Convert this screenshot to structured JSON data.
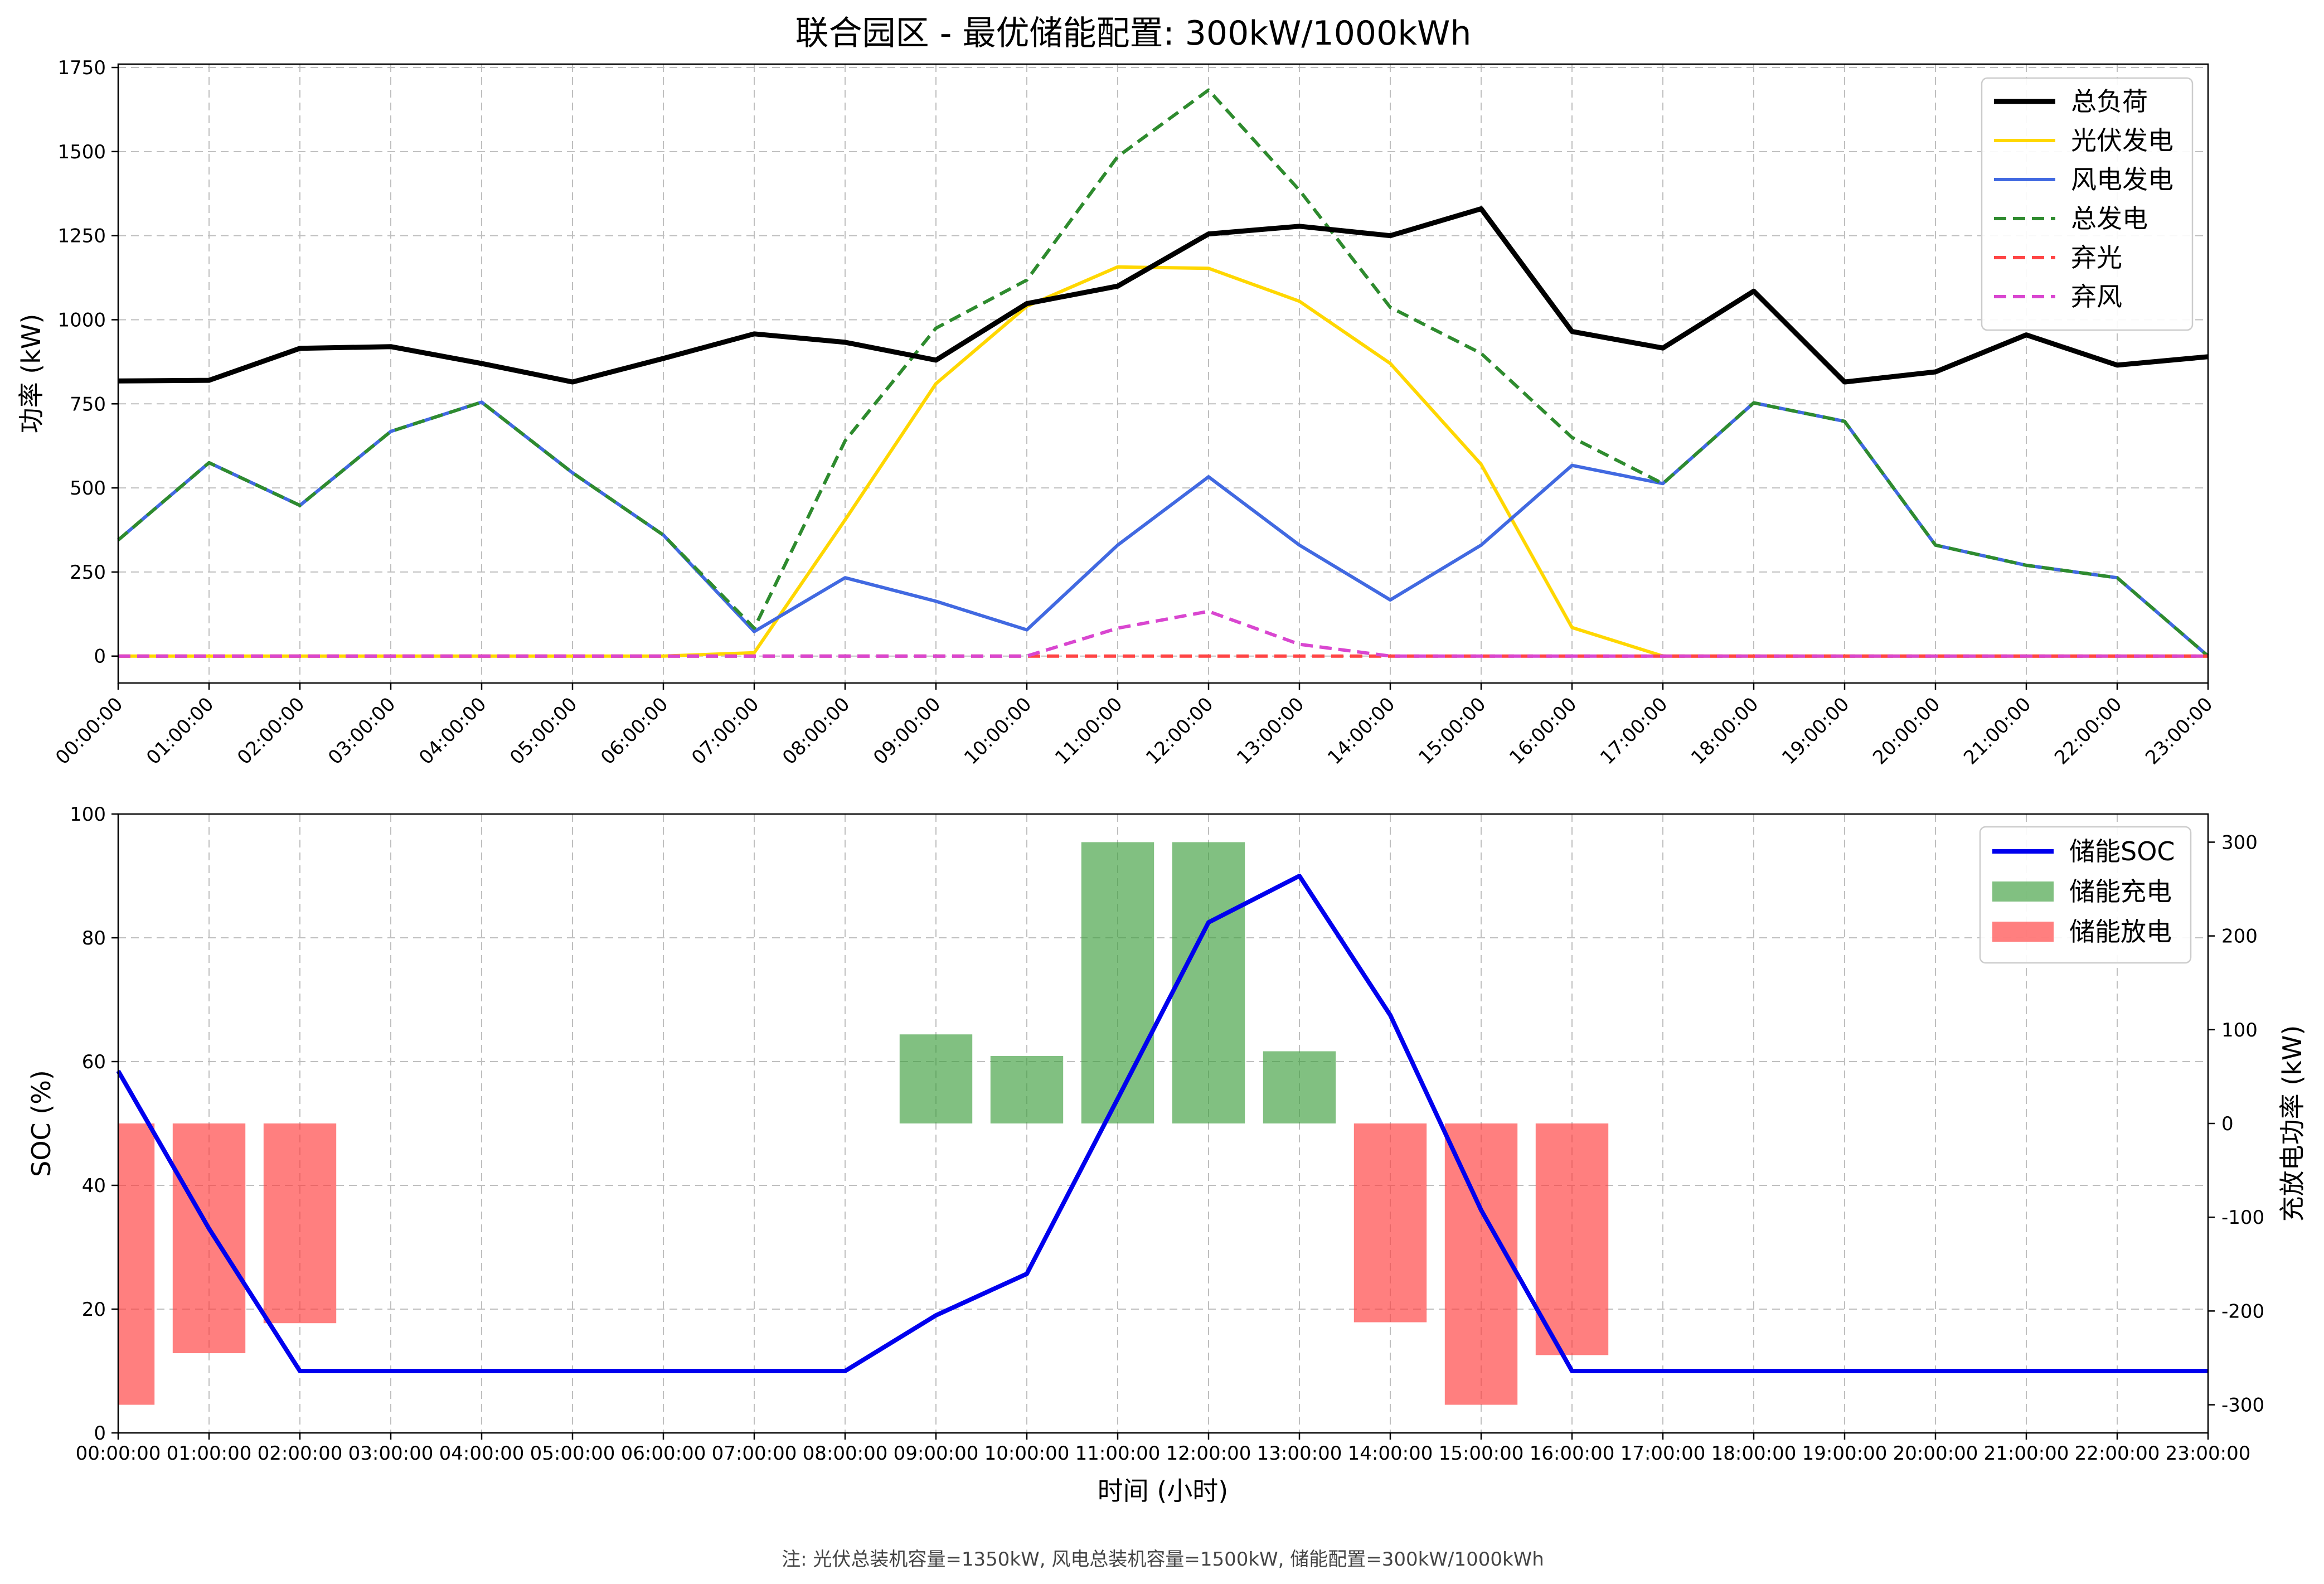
{
  "title": "联合园区 - 最优储能配置: 300kW/1000kWh",
  "note": "注: 光伏总装机容量=1350kW, 风电总装机容量=1500kW, 储能配置=300kW/1000kWh",
  "colors": {
    "load": "#000000",
    "pv": "#FFD700",
    "wind": "#4169E1",
    "total_gen": "#2E8B2E",
    "pv_curtail": "#FF4444",
    "wind_curtail": "#D946D0",
    "soc": "#0000EE",
    "charge": "#3D9E3D",
    "discharge": "#FF3B3B"
  },
  "chart_data": [
    {
      "type": "line",
      "name": "power",
      "ylabel": "功率 (kW)",
      "ylim": [
        -80,
        1760
      ],
      "yticks": [
        0,
        250,
        500,
        750,
        1000,
        1250,
        1500,
        1750
      ],
      "grid": true,
      "legend_position": "top-right",
      "x": [
        "00:00:00",
        "01:00:00",
        "02:00:00",
        "03:00:00",
        "04:00:00",
        "05:00:00",
        "06:00:00",
        "07:00:00",
        "08:00:00",
        "09:00:00",
        "10:00:00",
        "11:00:00",
        "12:00:00",
        "13:00:00",
        "14:00:00",
        "15:00:00",
        "16:00:00",
        "17:00:00",
        "18:00:00",
        "19:00:00",
        "20:00:00",
        "21:00:00",
        "22:00:00",
        "23:00:00"
      ],
      "series": [
        {
          "name": "总负荷",
          "style": "solid",
          "color_key": "load",
          "values": [
            818,
            820,
            915,
            920,
            870,
            815,
            885,
            958,
            933,
            880,
            1048,
            1100,
            1255,
            1278,
            1250,
            1330,
            965,
            916,
            1085,
            815,
            845,
            955,
            865,
            890
          ]
        },
        {
          "name": "光伏发电",
          "style": "solid",
          "color_key": "pv",
          "values": [
            0,
            0,
            0,
            0,
            0,
            0,
            0,
            10,
            405,
            810,
            1040,
            1157,
            1153,
            1055,
            870,
            570,
            85,
            0,
            0,
            0,
            0,
            0,
            0,
            0
          ]
        },
        {
          "name": "风电发电",
          "style": "solid",
          "color_key": "wind",
          "values": [
            345,
            575,
            448,
            668,
            755,
            545,
            360,
            73,
            233,
            163,
            78,
            330,
            533,
            330,
            167,
            330,
            567,
            513,
            753,
            698,
            330,
            270,
            233,
            0
          ]
        },
        {
          "name": "总发电",
          "style": "dashed",
          "color_key": "total_gen",
          "values": [
            345,
            575,
            448,
            668,
            755,
            545,
            360,
            83,
            640,
            975,
            1118,
            1485,
            1683,
            1385,
            1037,
            900,
            650,
            513,
            753,
            698,
            330,
            270,
            233,
            0
          ]
        },
        {
          "name": "弃光",
          "style": "dashed",
          "color_key": "pv_curtail",
          "values": [
            0,
            0,
            0,
            0,
            0,
            0,
            0,
            0,
            0,
            0,
            0,
            0,
            0,
            0,
            0,
            0,
            0,
            0,
            0,
            0,
            0,
            0,
            0,
            0
          ]
        },
        {
          "name": "弃风",
          "style": "dashed",
          "color_key": "wind_curtail",
          "values": [
            0,
            0,
            0,
            0,
            0,
            0,
            0,
            0,
            0,
            0,
            0,
            83,
            133,
            35,
            0,
            0,
            0,
            0,
            0,
            0,
            0,
            0,
            0,
            0
          ]
        }
      ]
    },
    {
      "type": "bar+line",
      "name": "storage",
      "xlabel": "时间 (小时)",
      "ylabel": "SOC (%)",
      "ylabel_right": "充放电功率 (kW)",
      "ylim": [
        0,
        100
      ],
      "yticks": [
        0,
        20,
        40,
        60,
        80,
        100
      ],
      "ylim_right": [
        -330,
        330
      ],
      "yticks_right": [
        -300,
        -200,
        -100,
        0,
        100,
        200,
        300
      ],
      "grid": true,
      "legend_position": "top-right",
      "x": [
        "00:00:00",
        "01:00:00",
        "02:00:00",
        "03:00:00",
        "04:00:00",
        "05:00:00",
        "06:00:00",
        "07:00:00",
        "08:00:00",
        "09:00:00",
        "10:00:00",
        "11:00:00",
        "12:00:00",
        "13:00:00",
        "14:00:00",
        "15:00:00",
        "16:00:00",
        "17:00:00",
        "18:00:00",
        "19:00:00",
        "20:00:00",
        "21:00:00",
        "22:00:00",
        "23:00:00"
      ],
      "series": [
        {
          "name": "储能SOC",
          "kind": "line",
          "color_key": "soc",
          "values": [
            58.5,
            33,
            10,
            10,
            10,
            10,
            10,
            10,
            10,
            19,
            25.7,
            54,
            82.5,
            90,
            67.5,
            36,
            10,
            10,
            10,
            10,
            10,
            10,
            10,
            10
          ]
        },
        {
          "name": "储能充电",
          "kind": "bar",
          "color_key": "charge",
          "values": [
            0,
            0,
            0,
            0,
            0,
            0,
            0,
            0,
            0,
            95,
            72,
            300,
            300,
            77,
            0,
            0,
            0,
            0,
            0,
            0,
            0,
            0,
            0,
            0
          ]
        },
        {
          "name": "储能放电",
          "kind": "bar",
          "color_key": "discharge",
          "values": [
            -300,
            -245,
            -213,
            0,
            0,
            0,
            0,
            0,
            0,
            0,
            0,
            0,
            0,
            0,
            -212,
            -300,
            -247,
            0,
            0,
            0,
            0,
            0,
            0,
            0
          ]
        }
      ]
    }
  ]
}
